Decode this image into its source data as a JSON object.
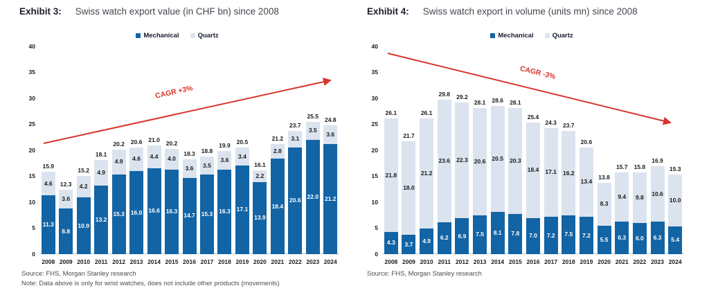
{
  "chart_data": [
    {
      "type": "bar",
      "stacked": true,
      "exhibit": "Exhibit 3:",
      "title": "Swiss watch export value (in CHF bn) since 2008",
      "categories": [
        "2008",
        "2009",
        "2010",
        "2011",
        "2012",
        "2013",
        "2014",
        "2015",
        "2016",
        "2017",
        "2018",
        "2019",
        "2020",
        "2021",
        "2022",
        "2023",
        "2024"
      ],
      "series": [
        {
          "name": "Mechanical",
          "color": "#1264a5",
          "label_color": "#ffffff",
          "values": [
            11.3,
            8.8,
            10.9,
            13.2,
            15.3,
            16.0,
            16.6,
            16.3,
            14.7,
            15.3,
            16.3,
            17.1,
            13.9,
            18.4,
            20.6,
            22.0,
            21.2
          ]
        },
        {
          "name": "Quartz",
          "color": "#dbe3ee",
          "label_color": "#1a1a1a",
          "values": [
            4.6,
            3.6,
            4.2,
            4.9,
            4.9,
            4.6,
            4.4,
            4.0,
            3.6,
            3.5,
            3.6,
            3.4,
            2.2,
            2.8,
            3.1,
            3.5,
            3.6
          ]
        }
      ],
      "totals": [
        15.9,
        12.3,
        15.2,
        18.1,
        20.2,
        20.6,
        21.0,
        20.2,
        18.3,
        18.8,
        19.9,
        20.5,
        16.1,
        21.2,
        23.7,
        25.5,
        24.8
      ],
      "xlabel": "",
      "ylabel": "",
      "ylim": [
        0,
        40
      ],
      "yticks": [
        0,
        5,
        10,
        15,
        20,
        25,
        30,
        35,
        40
      ],
      "grid": false,
      "legend_position": "top-center",
      "annotation": {
        "text": "CAGR +3%",
        "color": "#d7342b",
        "direction": "up"
      },
      "source": "Source: FHS, Morgan Stanley research",
      "note": "Note: Data above is only for wrist watches, does not include other products (movements)"
    },
    {
      "type": "bar",
      "stacked": true,
      "exhibit": "Exhibit 4:",
      "title": "Swiss watch export in volume (units mn) since 2008",
      "categories": [
        "2008",
        "2009",
        "2010",
        "2011",
        "2012",
        "2013",
        "2014",
        "2015",
        "2016",
        "2017",
        "2018",
        "2019",
        "2020",
        "2021",
        "2022",
        "2023",
        "2024"
      ],
      "series": [
        {
          "name": "Mechanical",
          "color": "#1264a5",
          "label_color": "#ffffff",
          "values": [
            4.3,
            3.7,
            4.9,
            6.2,
            6.9,
            7.5,
            8.1,
            7.8,
            7.0,
            7.2,
            7.5,
            7.2,
            5.5,
            6.3,
            6.0,
            6.3,
            5.4
          ]
        },
        {
          "name": "Quartz",
          "color": "#dbe3ee",
          "label_color": "#1a1a1a",
          "values": [
            21.8,
            18.0,
            21.2,
            23.6,
            22.3,
            20.6,
            20.5,
            20.3,
            18.4,
            17.1,
            16.2,
            13.4,
            8.3,
            9.4,
            9.8,
            10.6,
            10.0
          ]
        }
      ],
      "totals": [
        26.1,
        21.7,
        26.1,
        29.8,
        29.2,
        28.1,
        28.6,
        28.1,
        25.4,
        24.3,
        23.7,
        20.6,
        13.8,
        15.7,
        15.8,
        16.9,
        15.3
      ],
      "xlabel": "",
      "ylabel": "",
      "ylim": [
        0,
        40
      ],
      "yticks": [
        0,
        5,
        10,
        15,
        20,
        25,
        30,
        35,
        40
      ],
      "grid": false,
      "legend_position": "top-center",
      "annotation": {
        "text": "CAGR -3%",
        "color": "#d7342b",
        "direction": "down"
      },
      "source": "Source: FHS, Morgan Stanley research",
      "note": ""
    }
  ]
}
